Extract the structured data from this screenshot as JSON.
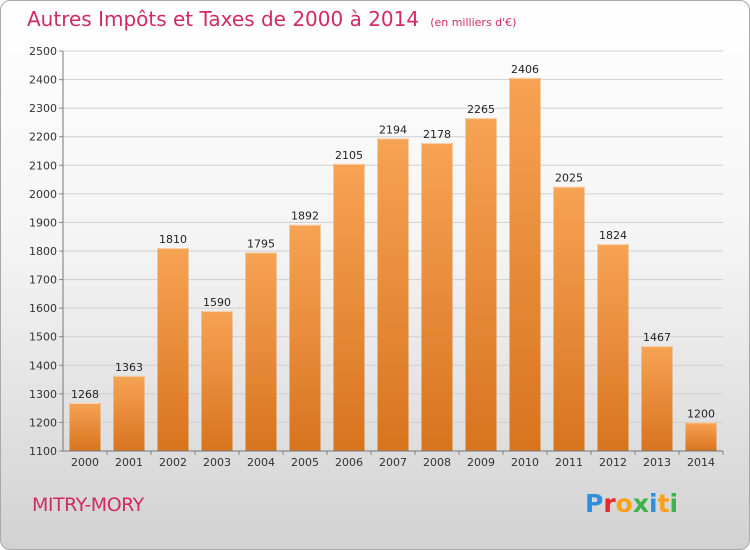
{
  "title": "Autres Impôts et Taxes de 2000 à 2014",
  "subtitle": "(en milliers d'€)",
  "town": "MITRY-MORY",
  "logo": {
    "letters": [
      "P",
      "r",
      "o",
      "x",
      "i",
      "t",
      "i"
    ],
    "colors": [
      "#2f8fd8",
      "#e8262c",
      "#f7a21b",
      "#3cb44a",
      "#2f8fd8",
      "#f7a21b",
      "#3cb44a"
    ]
  },
  "colors": {
    "bar_light": "#f6a354",
    "bar_dark": "#d8741e",
    "title": "#d12a64",
    "grid": "#cfcfcf"
  },
  "chart_data": {
    "type": "bar",
    "title": "Autres Impôts et Taxes de 2000 à 2014",
    "subtitle": "(en milliers d'€)",
    "categories": [
      "2000",
      "2001",
      "2002",
      "2003",
      "2004",
      "2005",
      "2006",
      "2007",
      "2008",
      "2009",
      "2010",
      "2011",
      "2012",
      "2013",
      "2014"
    ],
    "values": [
      1268,
      1363,
      1810,
      1590,
      1795,
      1892,
      2105,
      2194,
      2178,
      2265,
      2406,
      2025,
      1824,
      1467,
      1200
    ],
    "ylim": [
      1100,
      2500
    ],
    "yticks": [
      1100,
      1200,
      1300,
      1400,
      1500,
      1600,
      1700,
      1800,
      1900,
      2000,
      2100,
      2200,
      2300,
      2400,
      2500
    ],
    "grid": true,
    "data_labels": true
  }
}
